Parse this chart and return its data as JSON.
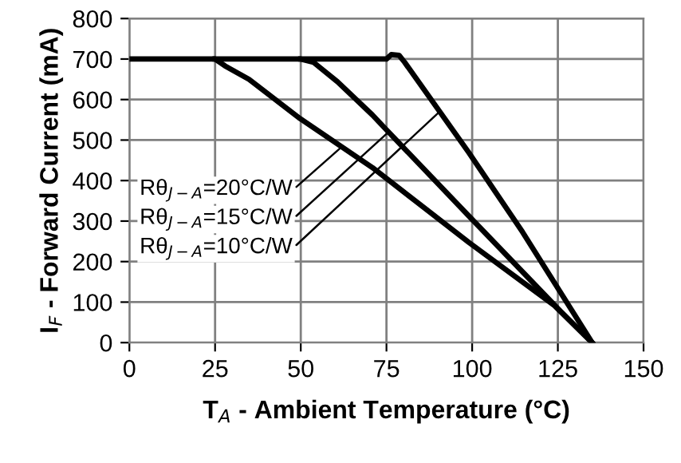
{
  "chart_data": {
    "type": "line",
    "xlabel": "T$_{A}$ - Ambient Temperature (°C)",
    "ylabel": "I$_{F}$ - Forward Current (mA)",
    "xlim": [
      0,
      150
    ],
    "xticks": [
      0,
      25,
      50,
      75,
      100,
      125,
      150
    ],
    "ylim": [
      0,
      800
    ],
    "yticks": [
      0,
      100,
      200,
      300,
      400,
      500,
      600,
      700,
      800
    ],
    "grid": true,
    "line_style": "solid",
    "marker": "none",
    "series": [
      {
        "color": "#000000",
        "x": [
          0,
          25,
          27.9,
          34.9,
          49.8,
          70.9,
          99.1,
          124.1,
          135
        ],
        "values": [
          700,
          700,
          683,
          650,
          553,
          432,
          247,
          91,
          0
        ]
      },
      {
        "color": "#000000",
        "x": [
          25,
          50,
          53.7,
          60.7,
          70.9,
          74.8,
          99.1,
          125.7,
          135
        ],
        "values": [
          700,
          700,
          692,
          644,
          562,
          527,
          312,
          78,
          0
        ]
      },
      {
        "color": "#000000",
        "x": [
          50,
          75,
          76.4,
          78.7,
          80.3,
          99.1,
          114.7,
          135
        ],
        "values": [
          700,
          700,
          711,
          709,
          692,
          468,
          273,
          0
        ]
      }
    ],
    "annotations": [
      {
        "text": "Rθ$_{J−A}$=20°C/W",
        "x": 61.5,
        "y": 480
      },
      {
        "text": "Rθ$_{J−A}$=15°C/W",
        "x": 75.6,
        "y": 520
      },
      {
        "text": "Rθ$_{J−A}$=10°C/W",
        "x": 90.5,
        "y": 570
      }
    ]
  }
}
